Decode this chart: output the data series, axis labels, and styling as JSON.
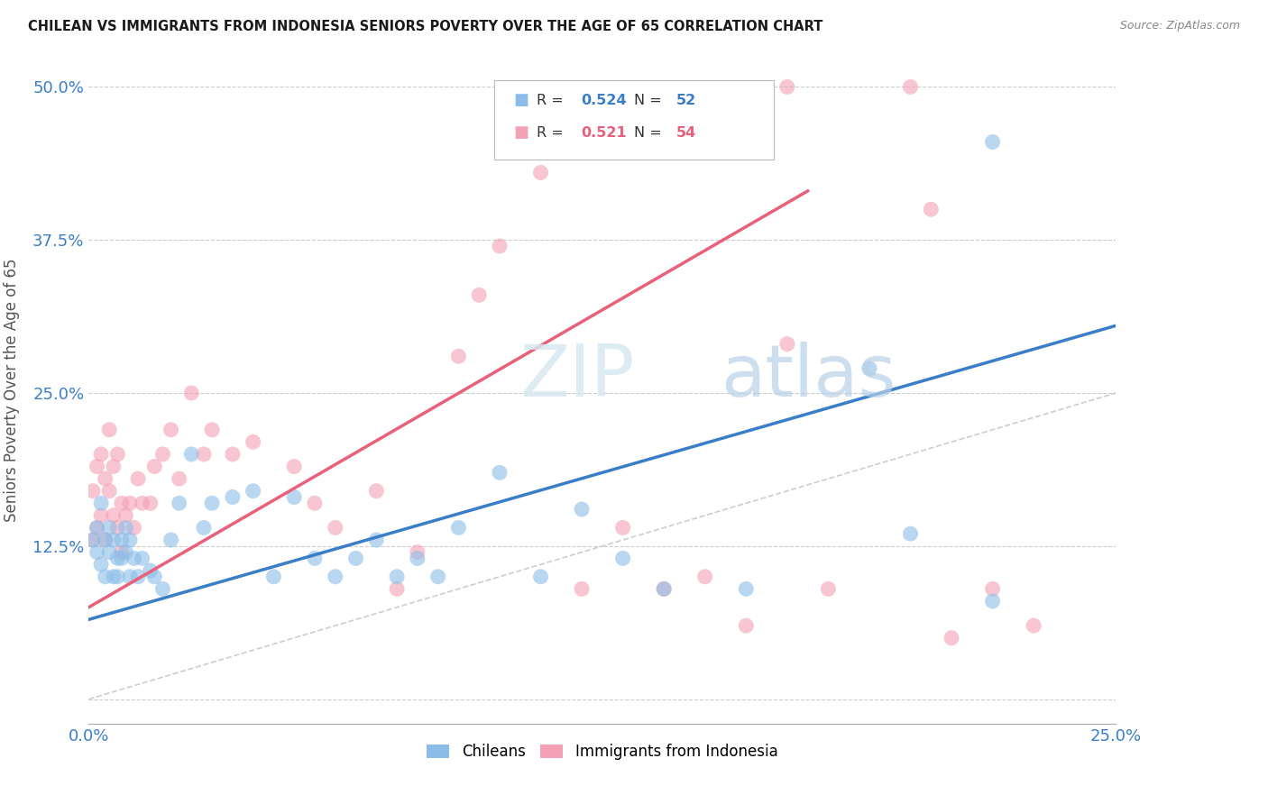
{
  "title": "CHILEAN VS IMMIGRANTS FROM INDONESIA SENIORS POVERTY OVER THE AGE OF 65 CORRELATION CHART",
  "source": "Source: ZipAtlas.com",
  "ylabel": "Seniors Poverty Over the Age of 65",
  "xlim": [
    0,
    0.25
  ],
  "ylim": [
    -0.02,
    0.525
  ],
  "xticks": [
    0.0,
    0.05,
    0.1,
    0.15,
    0.2,
    0.25
  ],
  "yticks": [
    0.0,
    0.125,
    0.25,
    0.375,
    0.5
  ],
  "xticklabels": [
    "0.0%",
    "",
    "",
    "",
    "",
    "25.0%"
  ],
  "yticklabels": [
    "",
    "12.5%",
    "25.0%",
    "37.5%",
    "50.0%"
  ],
  "chileans_color": "#8BBDE8",
  "indonesians_color": "#F4A0B5",
  "trend_blue": "#3A7EC8",
  "trend_pink": "#E8607A",
  "diagonal_color": "#C8C8C8",
  "watermark": "ZIPatlas",
  "legend_label_blue": "Chileans",
  "legend_label_pink": "Immigrants from Indonesia",
  "blue_trend_x": [
    0.0,
    0.25
  ],
  "blue_trend_y": [
    0.065,
    0.305
  ],
  "pink_trend_x": [
    0.0,
    0.175
  ],
  "pink_trend_y": [
    0.075,
    0.415
  ],
  "chileans_x": [
    0.001,
    0.002,
    0.002,
    0.003,
    0.003,
    0.004,
    0.004,
    0.005,
    0.005,
    0.006,
    0.006,
    0.007,
    0.007,
    0.008,
    0.008,
    0.009,
    0.009,
    0.01,
    0.01,
    0.011,
    0.012,
    0.013,
    0.015,
    0.016,
    0.018,
    0.02,
    0.022,
    0.025,
    0.028,
    0.03,
    0.035,
    0.04,
    0.045,
    0.05,
    0.055,
    0.06,
    0.065,
    0.07,
    0.075,
    0.08,
    0.085,
    0.09,
    0.1,
    0.11,
    0.12,
    0.13,
    0.14,
    0.16,
    0.19,
    0.2,
    0.22,
    0.22
  ],
  "chileans_y": [
    0.13,
    0.14,
    0.12,
    0.16,
    0.11,
    0.13,
    0.1,
    0.14,
    0.12,
    0.13,
    0.1,
    0.115,
    0.1,
    0.13,
    0.115,
    0.14,
    0.12,
    0.13,
    0.1,
    0.115,
    0.1,
    0.115,
    0.105,
    0.1,
    0.09,
    0.13,
    0.16,
    0.2,
    0.14,
    0.16,
    0.165,
    0.17,
    0.1,
    0.165,
    0.115,
    0.1,
    0.115,
    0.13,
    0.1,
    0.115,
    0.1,
    0.14,
    0.185,
    0.1,
    0.155,
    0.115,
    0.09,
    0.09,
    0.27,
    0.135,
    0.08,
    0.455
  ],
  "indonesians_x": [
    0.001,
    0.001,
    0.002,
    0.002,
    0.003,
    0.003,
    0.004,
    0.004,
    0.005,
    0.005,
    0.006,
    0.006,
    0.007,
    0.007,
    0.008,
    0.008,
    0.009,
    0.01,
    0.011,
    0.012,
    0.013,
    0.015,
    0.016,
    0.018,
    0.02,
    0.022,
    0.025,
    0.028,
    0.03,
    0.035,
    0.04,
    0.05,
    0.055,
    0.06,
    0.07,
    0.075,
    0.08,
    0.09,
    0.095,
    0.1,
    0.11,
    0.12,
    0.13,
    0.14,
    0.15,
    0.16,
    0.17,
    0.17,
    0.18,
    0.2,
    0.205,
    0.21,
    0.22,
    0.23
  ],
  "indonesians_y": [
    0.17,
    0.13,
    0.19,
    0.14,
    0.2,
    0.15,
    0.18,
    0.13,
    0.22,
    0.17,
    0.19,
    0.15,
    0.2,
    0.14,
    0.16,
    0.12,
    0.15,
    0.16,
    0.14,
    0.18,
    0.16,
    0.16,
    0.19,
    0.2,
    0.22,
    0.18,
    0.25,
    0.2,
    0.22,
    0.2,
    0.21,
    0.19,
    0.16,
    0.14,
    0.17,
    0.09,
    0.12,
    0.28,
    0.33,
    0.37,
    0.43,
    0.09,
    0.14,
    0.09,
    0.1,
    0.06,
    0.5,
    0.29,
    0.09,
    0.5,
    0.4,
    0.05,
    0.09,
    0.06
  ]
}
